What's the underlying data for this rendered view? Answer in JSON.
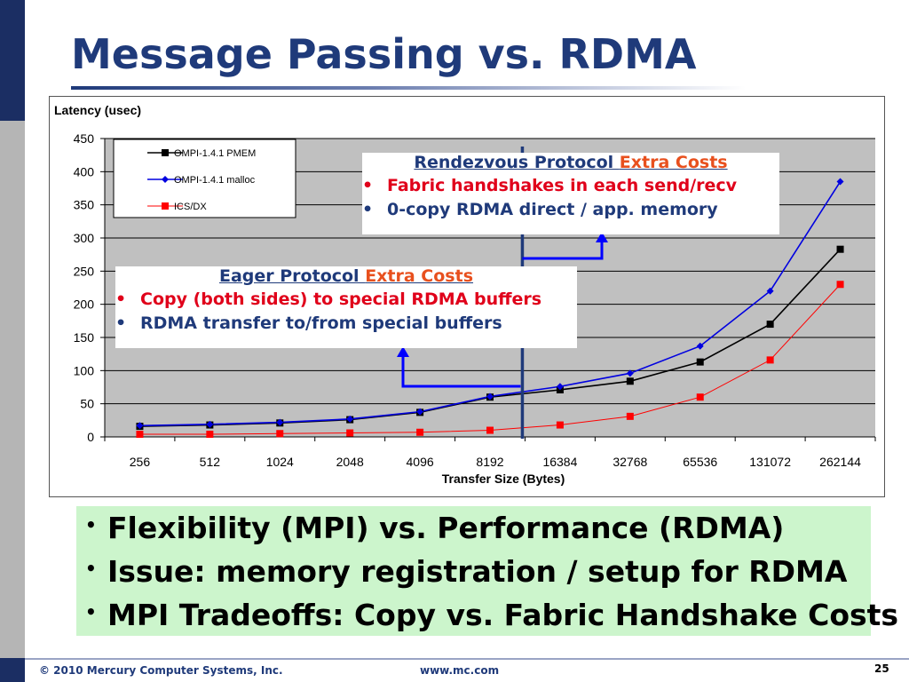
{
  "slide": {
    "title": "Message Passing vs. RDMA",
    "footer_copyright": "© 2010 Mercury Computer Systems, Inc.",
    "footer_url": "www.mc.com",
    "page_number": "25"
  },
  "callouts": {
    "rendezvous": {
      "head_plain": "Rendezvous Protocol ",
      "head_accent": "Extra Costs",
      "bullets": [
        "Fabric handshakes in each send/recv",
        "0-copy RDMA direct / app. memory"
      ]
    },
    "eager": {
      "head_plain": "Eager Protocol ",
      "head_accent": "Extra Costs",
      "bullets": [
        "Copy (both sides) to special RDMA buffers",
        "RDMA transfer to/from special buffers"
      ]
    }
  },
  "bullet_glyph": "•",
  "summary_bullets": [
    "Flexibility (MPI) vs. Performance (RDMA)",
    "Issue: memory registration / setup for RDMA",
    "MPI Tradeoffs: Copy vs. Fabric Handshake Costs"
  ],
  "chart_data": {
    "type": "line",
    "ylabel": "Latency (usec)",
    "xlabel": "Transfer Size (Bytes)",
    "ylim": [
      0,
      450
    ],
    "yticks": [
      0,
      50,
      100,
      150,
      200,
      250,
      300,
      350,
      400,
      450
    ],
    "categories": [
      "256",
      "512",
      "1024",
      "2048",
      "4096",
      "8192",
      "16384",
      "32768",
      "65536",
      "131072",
      "262144"
    ],
    "grid": true,
    "legend_position": "top-left",
    "series": [
      {
        "name": "OMPI-1.4.1 PMEM",
        "color": "#000000",
        "marker": "square",
        "values": [
          16,
          18,
          21,
          26,
          37,
          60,
          71,
          84,
          113,
          170,
          283
        ]
      },
      {
        "name": "OMPI-1.4.1 malloc",
        "color": "#0000e0",
        "marker": "diamond",
        "values": [
          17,
          19,
          22,
          27,
          38,
          61,
          76,
          96,
          137,
          220,
          385
        ]
      },
      {
        "name": "ICS/DX",
        "color": "#ff0000",
        "marker": "square",
        "values": [
          4,
          4,
          5,
          6,
          7,
          10,
          18,
          31,
          60,
          116,
          230
        ]
      }
    ]
  }
}
